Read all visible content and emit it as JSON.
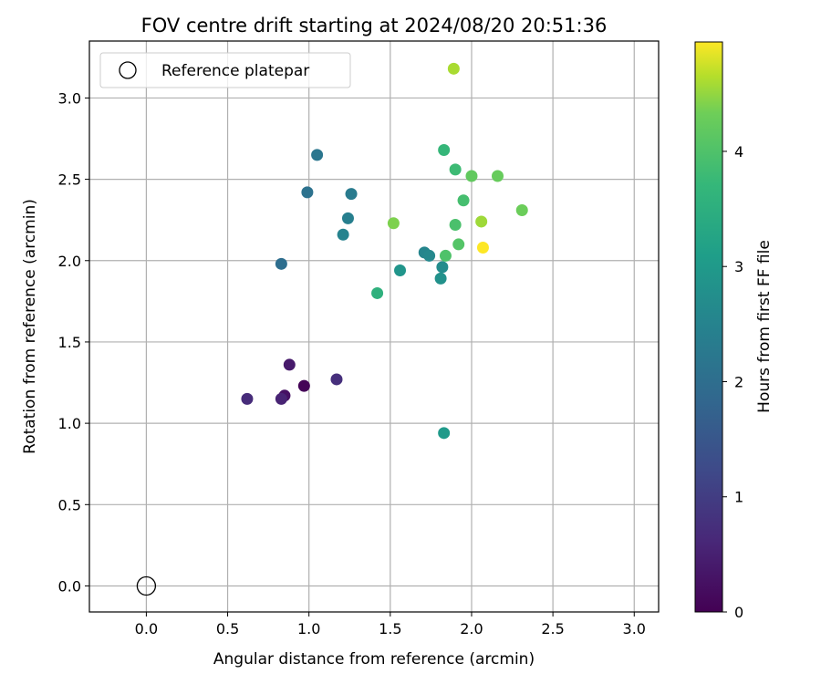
{
  "chart_data": {
    "type": "scatter",
    "title": "FOV centre drift starting at 2024/08/20 20:51:36",
    "xlabel": "Angular distance from reference (arcmin)",
    "ylabel": "Rotation from reference (arcmin)",
    "xlim": [
      -0.35,
      3.15
    ],
    "ylim": [
      -0.16,
      3.35
    ],
    "xticks": [
      "0.0",
      "0.5",
      "1.0",
      "1.5",
      "2.0",
      "2.5",
      "3.0"
    ],
    "yticks": [
      "0.0",
      "0.5",
      "1.0",
      "1.5",
      "2.0",
      "2.5",
      "3.0"
    ],
    "grid": true,
    "legend": {
      "placement": "upper-left",
      "entries": [
        "Reference platepar"
      ]
    },
    "reference_point": {
      "x": 0.0,
      "y": 0.0,
      "marker": "open-circle",
      "color": "#000000"
    },
    "colorbar": {
      "label": "Hours from first FF file",
      "range": [
        0,
        4.95
      ],
      "ticks": [
        "0",
        "1",
        "2",
        "3",
        "4"
      ],
      "colormap": "viridis"
    },
    "points": [
      {
        "x": 0.97,
        "y": 1.23,
        "hours": 0.05
      },
      {
        "x": 0.85,
        "y": 1.17,
        "hours": 0.25
      },
      {
        "x": 0.88,
        "y": 1.36,
        "hours": 0.4
      },
      {
        "x": 0.83,
        "y": 1.15,
        "hours": 0.55
      },
      {
        "x": 0.62,
        "y": 1.15,
        "hours": 0.7
      },
      {
        "x": 1.17,
        "y": 1.27,
        "hours": 0.75
      },
      {
        "x": 0.83,
        "y": 1.98,
        "hours": 2.0
      },
      {
        "x": 0.99,
        "y": 2.42,
        "hours": 2.1
      },
      {
        "x": 1.05,
        "y": 2.65,
        "hours": 2.2
      },
      {
        "x": 1.26,
        "y": 2.41,
        "hours": 2.3
      },
      {
        "x": 1.24,
        "y": 2.26,
        "hours": 2.4
      },
      {
        "x": 1.21,
        "y": 2.16,
        "hours": 2.5
      },
      {
        "x": 1.71,
        "y": 2.05,
        "hours": 2.55
      },
      {
        "x": 1.74,
        "y": 2.03,
        "hours": 2.6
      },
      {
        "x": 1.82,
        "y": 1.96,
        "hours": 2.7
      },
      {
        "x": 1.81,
        "y": 1.89,
        "hours": 2.8
      },
      {
        "x": 1.56,
        "y": 1.94,
        "hours": 2.9
      },
      {
        "x": 1.83,
        "y": 0.94,
        "hours": 3.0
      },
      {
        "x": 1.42,
        "y": 1.8,
        "hours": 3.55
      },
      {
        "x": 1.83,
        "y": 2.68,
        "hours": 3.7
      },
      {
        "x": 1.84,
        "y": 2.03,
        "hours": 4.0
      },
      {
        "x": 1.9,
        "y": 2.56,
        "hours": 3.8
      },
      {
        "x": 1.95,
        "y": 2.37,
        "hours": 3.9
      },
      {
        "x": 1.9,
        "y": 2.22,
        "hours": 3.95
      },
      {
        "x": 1.92,
        "y": 2.1,
        "hours": 4.05
      },
      {
        "x": 2.0,
        "y": 2.52,
        "hours": 4.2
      },
      {
        "x": 2.16,
        "y": 2.52,
        "hours": 4.25
      },
      {
        "x": 2.31,
        "y": 2.31,
        "hours": 4.3
      },
      {
        "x": 1.52,
        "y": 2.23,
        "hours": 4.4
      },
      {
        "x": 2.06,
        "y": 2.24,
        "hours": 4.55
      },
      {
        "x": 1.89,
        "y": 3.18,
        "hours": 4.6
      },
      {
        "x": 2.07,
        "y": 2.08,
        "hours": 4.95
      }
    ]
  }
}
